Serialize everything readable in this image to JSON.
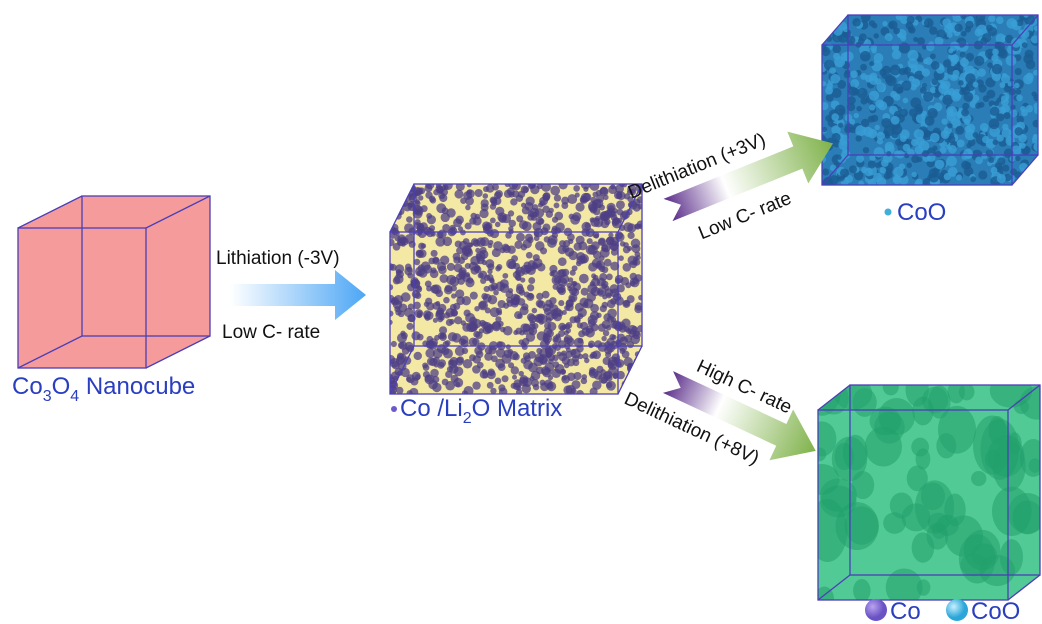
{
  "nanocube": {
    "label": [
      "Co",
      "3",
      "O",
      "4",
      " Nanocube"
    ]
  },
  "lithiation": {
    "top": "Lithiation (-3V)",
    "bottom": "Low C- rate"
  },
  "matrix": {
    "label": [
      "Co /Li",
      "2",
      "O Matrix"
    ]
  },
  "low_rate_path": {
    "top": "Delithiation (+3V)",
    "bottom": "Low C- rate"
  },
  "coo_cube": {
    "label": "CoO"
  },
  "high_rate_path": {
    "top": "High C- rate",
    "bottom": "Delithiation (+8V)"
  },
  "legend": [
    "Co",
    "CoO"
  ]
}
